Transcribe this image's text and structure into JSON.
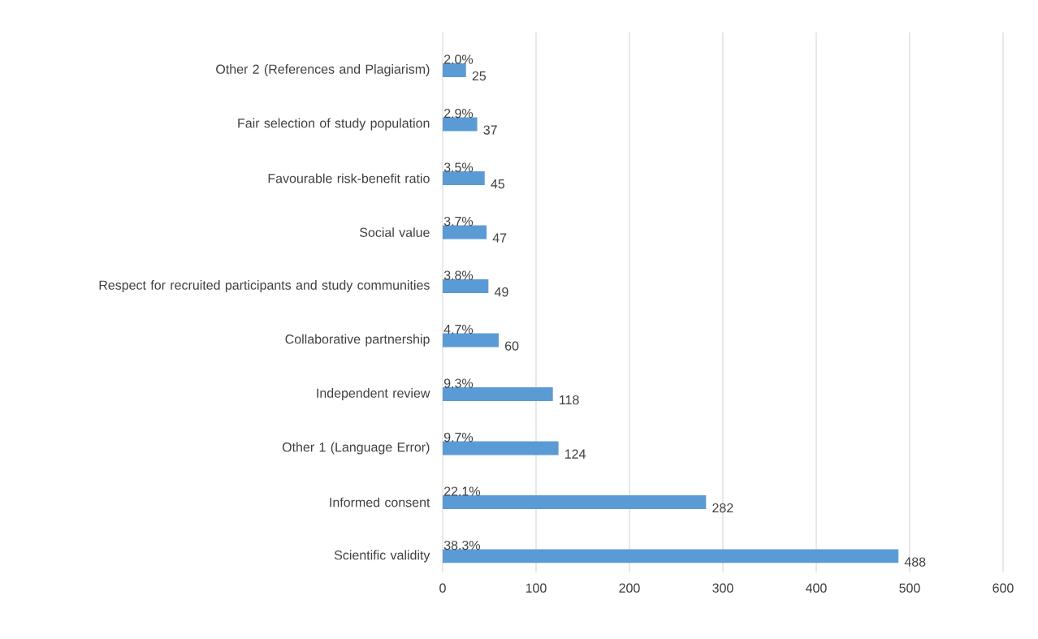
{
  "chart_data": {
    "type": "bar",
    "orientation": "horizontal",
    "categories": [
      "Other 2 (References and Plagiarism)",
      "Fair selection of study population",
      "Favourable risk-benefit ratio",
      "Social value",
      "Respect for recruited participants and study communities",
      "Collaborative partnership",
      "Independent review",
      "Other 1 (Language Error)",
      "Informed consent",
      "Scientific validity"
    ],
    "values": [
      25,
      37,
      45,
      47,
      49,
      60,
      118,
      124,
      282,
      488
    ],
    "color": "#5b9bd5",
    "xlim": [
      0,
      600
    ],
    "xticks": [
      0,
      100,
      200,
      300,
      400,
      500,
      600
    ],
    "grid": "x",
    "data_labels": true,
    "annotations": [
      "2.0%",
      "2.9%",
      "3.5%",
      "3.7%",
      "3.8%",
      "4.7%",
      "9.3%",
      "9.7%",
      "22.1%",
      "38.3%"
    ]
  }
}
